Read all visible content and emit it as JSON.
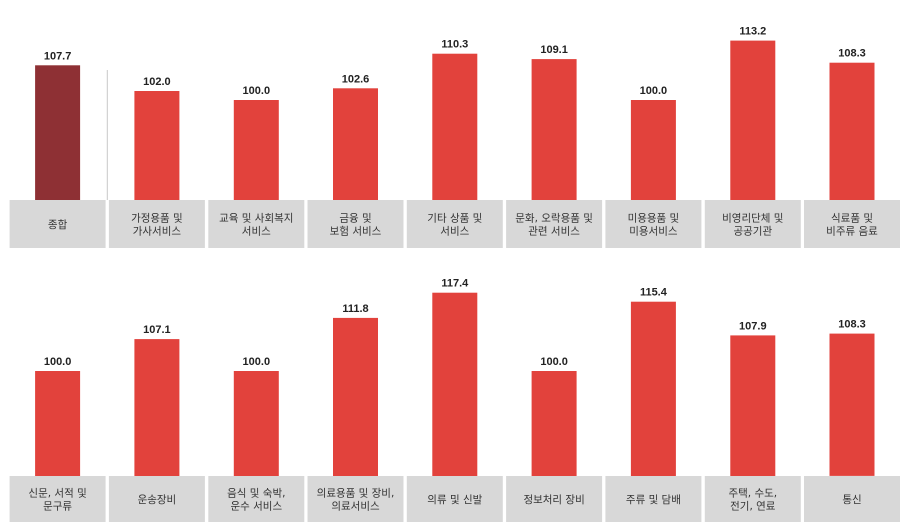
{
  "colors": {
    "bar": "#e2423c",
    "bar_highlight": "#8e3034",
    "label_band": "#d8d8d8",
    "separator": "#c8c8c8"
  },
  "chart_data": [
    {
      "type": "bar",
      "categories": [
        [
          "종합"
        ],
        [
          "가정용품 및",
          "가사서비스"
        ],
        [
          "교육 및 사회복지",
          "서비스"
        ],
        [
          "금융 및",
          "보험 서비스"
        ],
        [
          "기타 상품 및",
          "서비스"
        ],
        [
          "문화, 오락용품 및",
          "관련 서비스"
        ],
        [
          "미용용품 및",
          "미용서비스"
        ],
        [
          "비영리단체 및",
          "공공기관"
        ],
        [
          "식료품 및",
          "비주류 음료"
        ]
      ],
      "values": [
        107.7,
        102.0,
        100.0,
        102.6,
        110.3,
        109.1,
        100.0,
        113.2,
        108.3
      ],
      "value_labels": [
        "107.7",
        "102.0",
        "100.0",
        "102.6",
        "110.3",
        "109.1",
        "100.0",
        "113.2",
        "108.3"
      ],
      "highlight_index": 0
    },
    {
      "type": "bar",
      "categories": [
        [
          "신문, 서적 및",
          "문구류"
        ],
        [
          "운송장비"
        ],
        [
          "음식 및 숙박,",
          "운수 서비스"
        ],
        [
          "의료용품 및 장비,",
          "의료서비스"
        ],
        [
          "의류 및 신발"
        ],
        [
          "정보처리 장비"
        ],
        [
          "주류 및 담배"
        ],
        [
          "주택, 수도,",
          "전기, 연료"
        ],
        [
          "통신"
        ]
      ],
      "values": [
        100.0,
        107.1,
        100.0,
        111.8,
        117.4,
        100.0,
        115.4,
        107.9,
        108.3
      ],
      "value_labels": [
        "100.0",
        "107.1",
        "100.0",
        "111.8",
        "117.4",
        "100.0",
        "115.4",
        "107.9",
        "108.3"
      ],
      "highlight_index": null
    }
  ]
}
